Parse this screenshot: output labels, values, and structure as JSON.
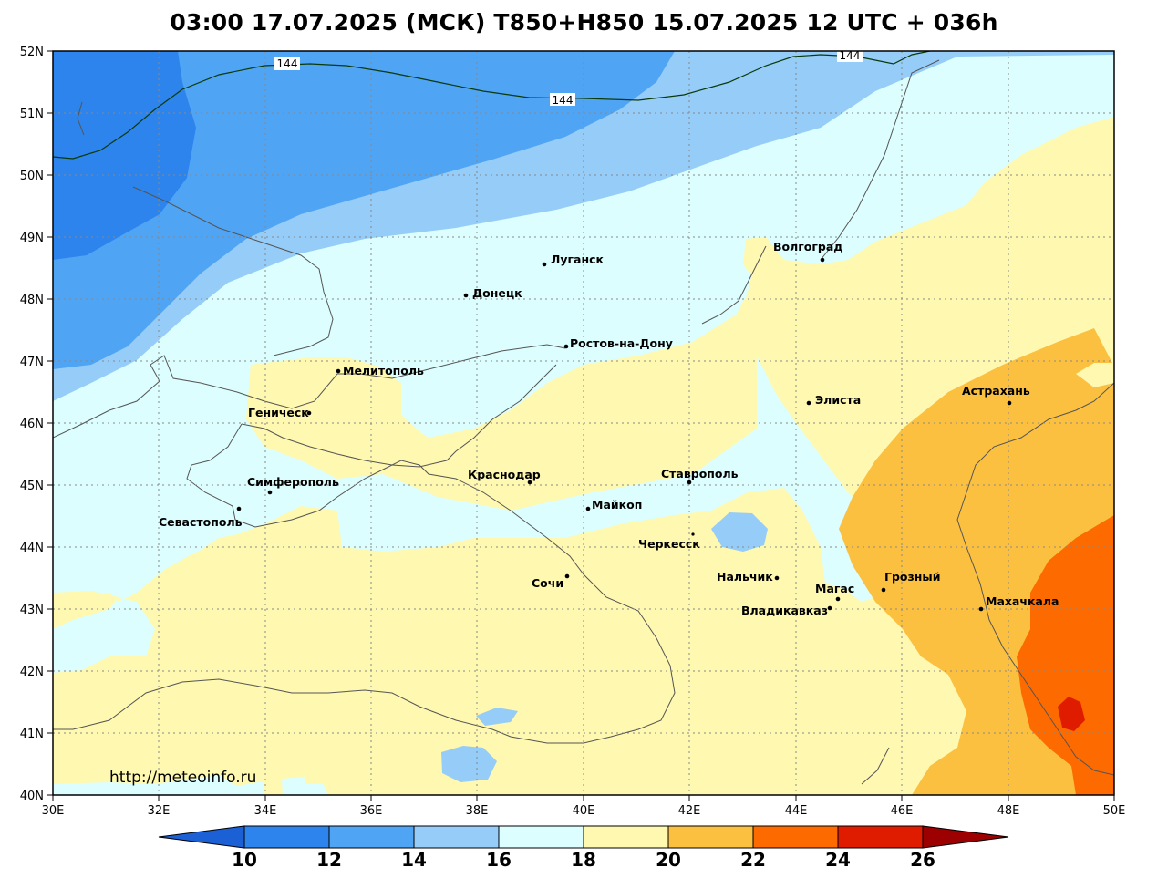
{
  "title": "03:00 17.07.2025 (МСК) T850+H850 15.07.2025 12 UTC + 036h",
  "source_url": "http://meteoinfo.ru",
  "lat_ticks": [
    "52N",
    "51N",
    "50N",
    "49N",
    "48N",
    "47N",
    "46N",
    "45N",
    "44N",
    "43N",
    "42N",
    "41N",
    "40N"
  ],
  "lon_ticks": [
    "30E",
    "32E",
    "34E",
    "36E",
    "38E",
    "40E",
    "42E",
    "44E",
    "46E",
    "48E",
    "50E"
  ],
  "contour_label": "144",
  "colorbar": {
    "levels": [
      "10",
      "12",
      "14",
      "16",
      "18",
      "20",
      "22",
      "24",
      "26"
    ],
    "colors": {
      "below": "#1c60d6",
      "b10_12": "#2c84ec",
      "b12_14": "#50a4f4",
      "b14_16": "#96ccf8",
      "b16_18": "#dcfefe",
      "b18_20": "#fef8b0",
      "b20_22": "#fcc040",
      "b22_24": "#fc6a00",
      "b24_26": "#e01c00",
      "above": "#9c0000"
    }
  },
  "cities": [
    {
      "id": "lugansk",
      "name": "Луганск"
    },
    {
      "id": "donetsk",
      "name": "Донецк"
    },
    {
      "id": "volgograd",
      "name": "Волгоград"
    },
    {
      "id": "rostov",
      "name": "Ростов-на-Дону"
    },
    {
      "id": "melitopol",
      "name": "Мелитополь"
    },
    {
      "id": "genichesk",
      "name": "Геническ"
    },
    {
      "id": "elista",
      "name": "Элиста"
    },
    {
      "id": "astrakhan",
      "name": "Астрахань"
    },
    {
      "id": "simferopol",
      "name": "Симферополь"
    },
    {
      "id": "krasnodar",
      "name": "Краснодар"
    },
    {
      "id": "stavropol",
      "name": "Ставрополь"
    },
    {
      "id": "sevastopol",
      "name": "Севастополь"
    },
    {
      "id": "maikop",
      "name": "Майкоп"
    },
    {
      "id": "cherkessk",
      "name": "Черкесск"
    },
    {
      "id": "sochi",
      "name": "Сочи"
    },
    {
      "id": "nalchik",
      "name": "Нальчик"
    },
    {
      "id": "magas",
      "name": "Магас"
    },
    {
      "id": "grozny",
      "name": "Грозный"
    },
    {
      "id": "vladikavkaz",
      "name": "Владикавказ"
    },
    {
      "id": "makhachkala",
      "name": "Махачкала"
    }
  ]
}
